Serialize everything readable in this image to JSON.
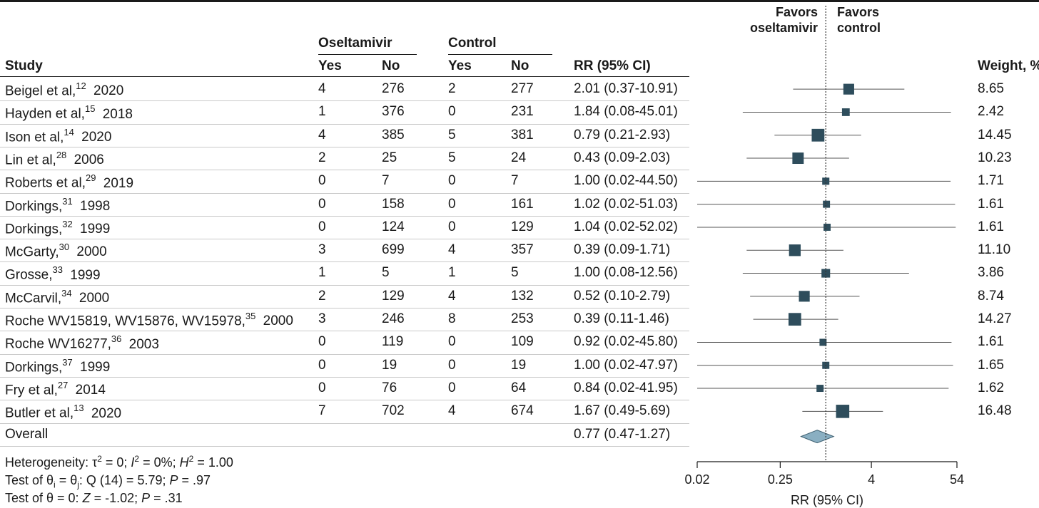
{
  "chart_data": {
    "type": "forest",
    "columns": {
      "study": "Study",
      "group1": "Oseltamivir",
      "group2": "Control",
      "yes": "Yes",
      "no": "No",
      "rr": "RR (95% CI)",
      "weight": "Weight, %"
    },
    "favors_left": [
      "Favors",
      "oseltamivir"
    ],
    "favors_right": [
      "Favors",
      "control"
    ],
    "studies": [
      {
        "name": "Beigel et al,",
        "ref": "12",
        "year": "2020",
        "ose_yes": "4",
        "ose_no": "276",
        "ctl_yes": "2",
        "ctl_no": "277",
        "rr_text": "2.01 (0.37-10.91)",
        "rr": 2.01,
        "lo": 0.37,
        "hi": 10.91,
        "weight": "8.65",
        "w": 8.65
      },
      {
        "name": "Hayden et al,",
        "ref": "15",
        "year": "2018",
        "ose_yes": "1",
        "ose_no": "376",
        "ctl_yes": "0",
        "ctl_no": "231",
        "rr_text": "1.84 (0.08-45.01)",
        "rr": 1.84,
        "lo": 0.08,
        "hi": 45.01,
        "weight": "2.42",
        "w": 2.42
      },
      {
        "name": "Ison et al,",
        "ref": "14",
        "year": "2020",
        "ose_yes": "4",
        "ose_no": "385",
        "ctl_yes": "5",
        "ctl_no": "381",
        "rr_text": "0.79 (0.21-2.93)",
        "rr": 0.79,
        "lo": 0.21,
        "hi": 2.93,
        "weight": "14.45",
        "w": 14.45
      },
      {
        "name": "Lin et al,",
        "ref": "28",
        "year": "2006",
        "ose_yes": "2",
        "ose_no": "25",
        "ctl_yes": "5",
        "ctl_no": "24",
        "rr_text": "0.43 (0.09-2.03)",
        "rr": 0.43,
        "lo": 0.09,
        "hi": 2.03,
        "weight": "10.23",
        "w": 10.23
      },
      {
        "name": "Roberts et al,",
        "ref": "29",
        "year": "2019",
        "ose_yes": "0",
        "ose_no": "7",
        "ctl_yes": "0",
        "ctl_no": "7",
        "rr_text": "1.00 (0.02-44.50)",
        "rr": 1.0,
        "lo": 0.02,
        "hi": 44.5,
        "weight": "1.71",
        "w": 1.71
      },
      {
        "name": "Dorkings,",
        "ref": "31",
        "year": "1998",
        "ose_yes": "0",
        "ose_no": "158",
        "ctl_yes": "0",
        "ctl_no": "161",
        "rr_text": "1.02 (0.02-51.03)",
        "rr": 1.02,
        "lo": 0.02,
        "hi": 51.03,
        "weight": "1.61",
        "w": 1.61
      },
      {
        "name": "Dorkings,",
        "ref": "32",
        "year": "1999",
        "ose_yes": "0",
        "ose_no": "124",
        "ctl_yes": "0",
        "ctl_no": "129",
        "rr_text": "1.04 (0.02-52.02)",
        "rr": 1.04,
        "lo": 0.02,
        "hi": 52.02,
        "weight": "1.61",
        "w": 1.61
      },
      {
        "name": "McGarty,",
        "ref": "30",
        "year": "2000",
        "ose_yes": "3",
        "ose_no": "699",
        "ctl_yes": "4",
        "ctl_no": "357",
        "rr_text": "0.39 (0.09-1.71)",
        "rr": 0.39,
        "lo": 0.09,
        "hi": 1.71,
        "weight": "11.10",
        "w": 11.1
      },
      {
        "name": "Grosse,",
        "ref": "33",
        "year": "1999",
        "ose_yes": "1",
        "ose_no": "5",
        "ctl_yes": "1",
        "ctl_no": "5",
        "rr_text": "1.00 (0.08-12.56)",
        "rr": 1.0,
        "lo": 0.08,
        "hi": 12.56,
        "weight": "3.86",
        "w": 3.86
      },
      {
        "name": "McCarvil,",
        "ref": "34",
        "year": "2000",
        "ose_yes": "2",
        "ose_no": "129",
        "ctl_yes": "4",
        "ctl_no": "132",
        "rr_text": "0.52 (0.10-2.79)",
        "rr": 0.52,
        "lo": 0.1,
        "hi": 2.79,
        "weight": "8.74",
        "w": 8.74
      },
      {
        "name": "Roche WV15819, WV15876, WV15978,",
        "ref": "35",
        "year": "2000",
        "ose_yes": "3",
        "ose_no": "246",
        "ctl_yes": "8",
        "ctl_no": "253",
        "rr_text": "0.39 (0.11-1.46)",
        "rr": 0.39,
        "lo": 0.11,
        "hi": 1.46,
        "weight": "14.27",
        "w": 14.27
      },
      {
        "name": "Roche WV16277,",
        "ref": "36",
        "year": "2003",
        "ose_yes": "0",
        "ose_no": "119",
        "ctl_yes": "0",
        "ctl_no": "109",
        "rr_text": "0.92 (0.02-45.80)",
        "rr": 0.92,
        "lo": 0.02,
        "hi": 45.8,
        "weight": "1.61",
        "w": 1.61
      },
      {
        "name": "Dorkings,",
        "ref": "37",
        "year": "1999",
        "ose_yes": "0",
        "ose_no": "19",
        "ctl_yes": "0",
        "ctl_no": "19",
        "rr_text": "1.00 (0.02-47.97)",
        "rr": 1.0,
        "lo": 0.02,
        "hi": 47.97,
        "weight": "1.65",
        "w": 1.65
      },
      {
        "name": "Fry et al,",
        "ref": "27",
        "year": "2014",
        "ose_yes": "0",
        "ose_no": "76",
        "ctl_yes": "0",
        "ctl_no": "64",
        "rr_text": "0.84 (0.02-41.95)",
        "rr": 0.84,
        "lo": 0.02,
        "hi": 41.95,
        "weight": "1.62",
        "w": 1.62
      },
      {
        "name": "Butler et al,",
        "ref": "13",
        "year": "2020",
        "ose_yes": "7",
        "ose_no": "702",
        "ctl_yes": "4",
        "ctl_no": "674",
        "rr_text": "1.67 (0.49-5.69)",
        "rr": 1.67,
        "lo": 0.49,
        "hi": 5.69,
        "weight": "16.48",
        "w": 16.48
      }
    ],
    "overall": {
      "label": "Overall",
      "rr_text": "0.77 (0.47-1.27)",
      "rr": 0.77,
      "lo": 0.47,
      "hi": 1.27
    },
    "footnotes": {
      "heterogeneity": [
        "Heterogeneity: τ",
        "2",
        " = 0; ",
        "I",
        "2",
        " = 0%; ",
        "H",
        "2",
        " = 1.00"
      ],
      "test1": [
        "Test of θ",
        "i",
        " = θ",
        "j",
        ": Q (14) = 5.79; ",
        "P",
        " = .97"
      ],
      "test2": [
        "Test of θ = 0: ",
        "Z",
        " = -1.02; ",
        "P",
        " = .31"
      ]
    },
    "x_axis": {
      "label": "RR (95% CI)",
      "scale": "log",
      "ticks": [
        0.02,
        0.25,
        4,
        54
      ],
      "tick_labels": [
        "0.02",
        "0.25",
        "4",
        "54"
      ],
      "range": [
        0.02,
        54
      ]
    },
    "reference_line": 1,
    "colors": {
      "square": "#2e4d5c",
      "diamond": "#8aafc2",
      "text": "#1a1a1a",
      "rule": "#c9c9c9"
    }
  }
}
